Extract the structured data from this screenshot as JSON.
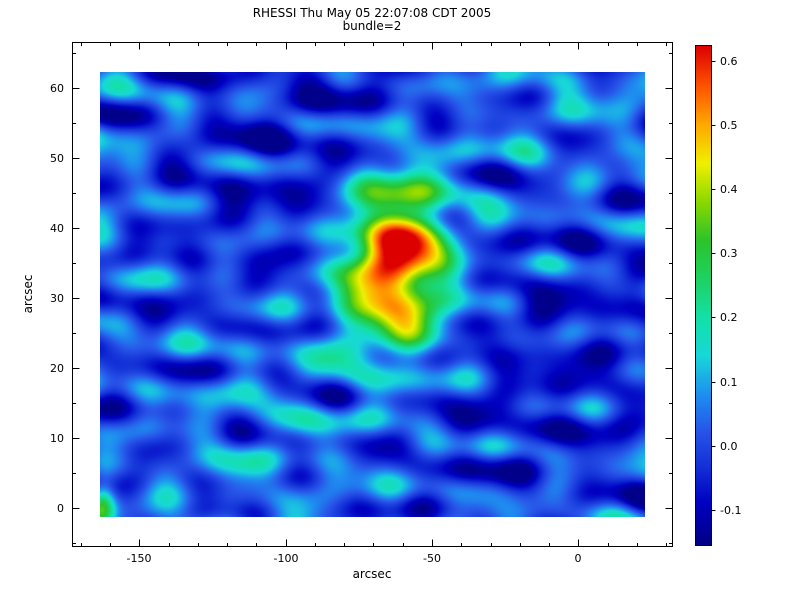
{
  "chart_data": {
    "type": "heatmap",
    "title": "RHESSI Thu May 05 22:07:08 CDT 2005",
    "subtitle": "bundle=2",
    "xlabel": "arcsec",
    "ylabel": "arcsec",
    "xlim": [
      -173,
      32
    ],
    "ylim": [
      -5.5,
      66.5
    ],
    "x_axis": {
      "tick_values": [
        -150,
        -100,
        -50,
        0
      ],
      "tick_labels": [
        "-150",
        "-100",
        "-50",
        "0"
      ],
      "minor_step": 10
    },
    "y_axis": {
      "tick_values": [
        0,
        10,
        20,
        30,
        40,
        50,
        60
      ],
      "tick_labels": [
        "0",
        "10",
        "20",
        "30",
        "40",
        "50",
        "60"
      ],
      "minor_step": 5
    },
    "image_extent": {
      "x": [
        -163.4,
        22.8
      ],
      "y": [
        -1.4,
        62.2
      ]
    },
    "colorbar": {
      "vmin": -0.155,
      "vmax": 0.625,
      "tick_values": [
        -0.1,
        0.0,
        0.1,
        0.2,
        0.3,
        0.4,
        0.5,
        0.6
      ],
      "tick_labels": [
        "-0.1",
        "0.0",
        "0.1",
        "0.2",
        "0.3",
        "0.4",
        "0.5",
        "0.6"
      ]
    },
    "colormap_stops": [
      [
        -0.155,
        "#000085"
      ],
      [
        -0.09,
        "#0000c2"
      ],
      [
        -0.03,
        "#1433d8"
      ],
      [
        0.02,
        "#2853e8"
      ],
      [
        0.08,
        "#1e90f0"
      ],
      [
        0.14,
        "#18d8d8"
      ],
      [
        0.2,
        "#14e0a8"
      ],
      [
        0.26,
        "#1ed262"
      ],
      [
        0.32,
        "#2cc42c"
      ],
      [
        0.38,
        "#8cd800"
      ],
      [
        0.44,
        "#f0f000"
      ],
      [
        0.5,
        "#ffaa00"
      ],
      [
        0.56,
        "#ff5500"
      ],
      [
        0.625,
        "#dc0000"
      ]
    ],
    "sources": [
      {
        "x": -61,
        "y": 35.5,
        "sigma_x": 11.5,
        "sigma_y": 8.5,
        "amplitude": 0.62
      },
      {
        "x": -76,
        "y": 31,
        "sigma_x": 8,
        "sigma_y": 6,
        "amplitude": 0.11
      },
      {
        "x": -162.5,
        "y": 0,
        "sigma_x": 3,
        "sigma_y": 2.5,
        "amplitude": 0.3
      }
    ],
    "background_noise": {
      "base": 0.0,
      "clip": [
        -0.15,
        0.625
      ],
      "components": [
        [
          0.048,
          140,
          8.6,
          1.0
        ],
        [
          0.042,
          64,
          -10.4,
          2.6
        ],
        [
          0.038,
          36,
          13.8,
          4.9
        ],
        [
          0.036,
          92,
          6.9,
          0.3
        ],
        [
          0.032,
          26,
          -17.5,
          3.4
        ],
        [
          0.028,
          48,
          11.2,
          5.6
        ],
        [
          0.024,
          19,
          31,
          1.9
        ],
        [
          0.022,
          300,
          -5.3,
          4.1
        ],
        [
          0.03,
          260,
          95,
          2.0
        ],
        [
          0.026,
          150,
          -75,
          5.2
        ]
      ]
    },
    "frame_color": "#000000",
    "text_color": "#000000"
  }
}
